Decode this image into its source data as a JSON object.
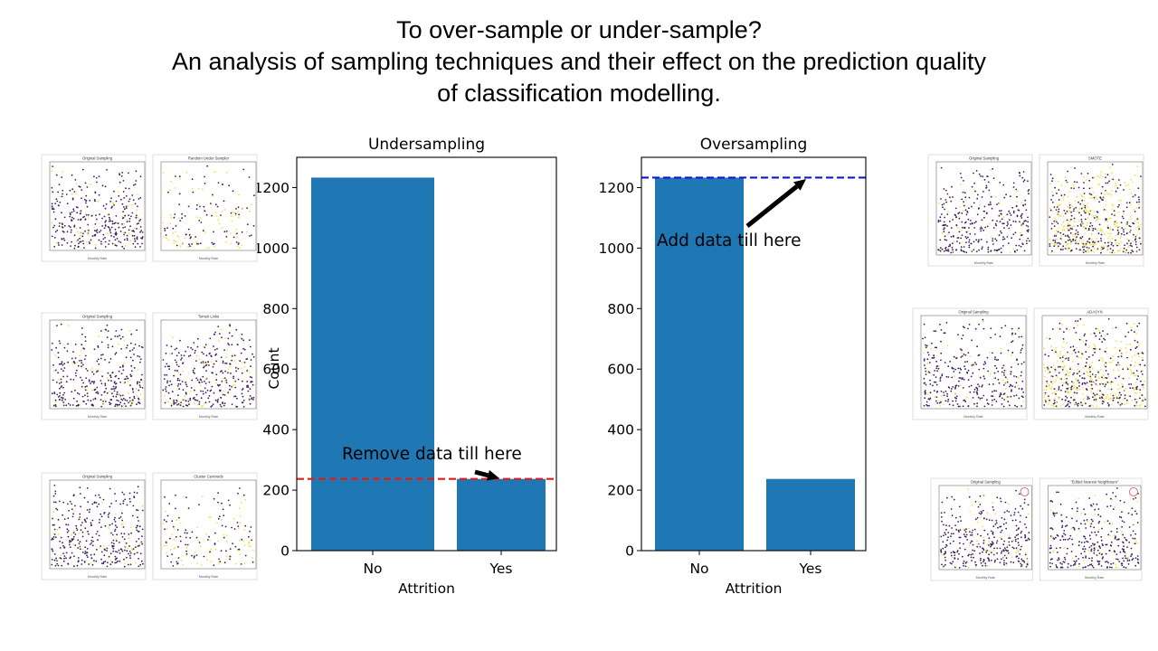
{
  "slide": {
    "title_lines": [
      "To over-sample or under-sample?",
      "An analysis of sampling techniques and their effect on the prediction quality",
      "of classification modelling."
    ]
  },
  "colors": {
    "bar": "#1f77b4",
    "undersample_line": "#e31a1c",
    "oversample_line": "#1414d8",
    "scatter_purple": "#3b1f5e",
    "scatter_yellow": "#f5e04a",
    "thumb_marker_circle": "#e05050"
  },
  "chart_data": [
    {
      "type": "bar",
      "title": "Undersampling",
      "categories": [
        "No",
        "Yes"
      ],
      "values": [
        1233,
        237
      ],
      "xlabel": "Attrition",
      "ylabel": "Count",
      "ylim": [
        0,
        1300
      ],
      "yticks": [
        0,
        200,
        400,
        600,
        800,
        1000,
        1200
      ],
      "reference_line": {
        "y": 237,
        "style": "dashed",
        "color": "red"
      },
      "annotation": {
        "text": "Remove data till here",
        "arrow_to": {
          "category": "Yes",
          "y": 237
        }
      },
      "grid": false
    },
    {
      "type": "bar",
      "title": "Oversampling",
      "categories": [
        "No",
        "Yes"
      ],
      "values": [
        1233,
        237
      ],
      "xlabel": "Attrition",
      "ylabel": "",
      "ylim": [
        0,
        1300
      ],
      "yticks": [
        0,
        200,
        400,
        600,
        800,
        1000,
        1200
      ],
      "reference_line": {
        "y": 1233,
        "style": "dashed",
        "color": "blue"
      },
      "annotation": {
        "text": "Add data till here",
        "arrow_to": {
          "category": "Yes",
          "y": 1233
        }
      },
      "grid": false
    }
  ],
  "thumbnails": [
    {
      "panel": "left-1",
      "titles": [
        "Original Sampling",
        "Random Under Sampler"
      ],
      "axis_label": "Monthly Rate",
      "second_density": 0.45,
      "second_yellow": 0.45,
      "circles": false
    },
    {
      "panel": "left-2",
      "titles": [
        "Original Sampling",
        "Tomek Links"
      ],
      "axis_label": "Monthly Rate",
      "second_density": 1.0,
      "second_yellow": 0.16,
      "circles": false
    },
    {
      "panel": "left-3",
      "titles": [
        "Original Sampling",
        "Cluster Centroids"
      ],
      "axis_label": "Monthly Rate",
      "second_density": 0.45,
      "second_yellow": 0.45,
      "circles": false
    },
    {
      "panel": "right-1",
      "titles": [
        "Original Sampling",
        "SMOTE"
      ],
      "axis_label": "Monthly Rate",
      "second_density": 1.6,
      "second_yellow": 0.5,
      "circles": false
    },
    {
      "panel": "right-2",
      "titles": [
        "Original Sampling",
        "ADASYN"
      ],
      "axis_label": "Monthly Rate",
      "second_density": 1.6,
      "second_yellow": 0.5,
      "circles": false
    },
    {
      "panel": "right-3",
      "titles": [
        "Original Sampling",
        "\"Edited Nearest Neighbours\""
      ],
      "axis_label": "Monthly Rate",
      "second_density": 0.95,
      "second_yellow": 0.12,
      "circles": true
    }
  ]
}
